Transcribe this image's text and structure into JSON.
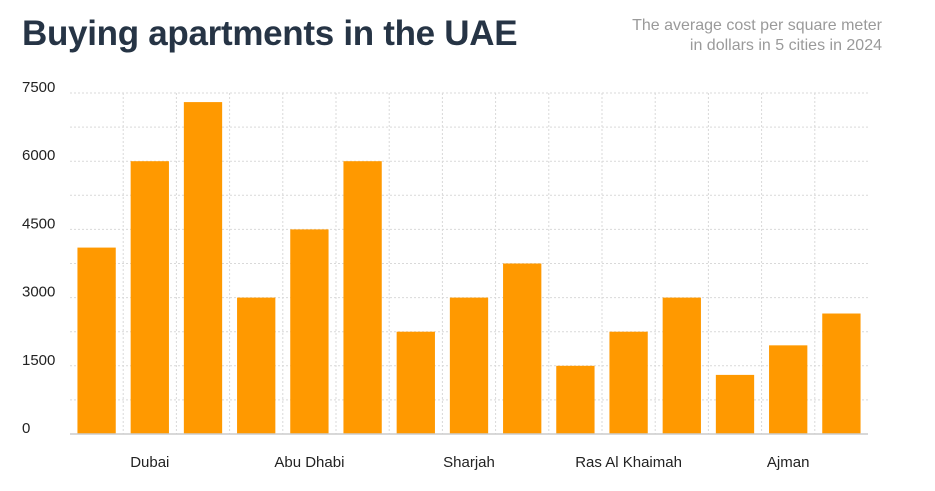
{
  "title": "Buying apartments in the UAE",
  "subtitle_lines": [
    "The average cost per square meter",
    "in dollars in 5 cities in 2024"
  ],
  "colors": {
    "bar": "#ff9900",
    "grid": "#d9d9d9",
    "axis": "#cccccc",
    "title": "#263445",
    "subtitle": "#9a9a9a",
    "tick": "#222222"
  },
  "chart_data": {
    "type": "bar",
    "title": "Buying apartments in the UAE",
    "subtitle": "The average cost per square meter in dollars in 5 cities in 2024",
    "xlabel": "",
    "ylabel": "",
    "categories": [
      "Dubai",
      "Abu Dhabi",
      "Sharjah",
      "Ras Al Khaimah",
      "Ajman"
    ],
    "bars_per_category": 3,
    "values": [
      [
        4100,
        6000,
        7300
      ],
      [
        3000,
        4500,
        6000
      ],
      [
        2250,
        3000,
        3750
      ],
      [
        1500,
        2250,
        3000
      ],
      [
        1300,
        1950,
        2650
      ]
    ],
    "ylim": [
      0,
      7500
    ],
    "yticks": [
      0,
      1500,
      3000,
      4500,
      6000,
      7500
    ],
    "grid": true,
    "legend": "none"
  }
}
